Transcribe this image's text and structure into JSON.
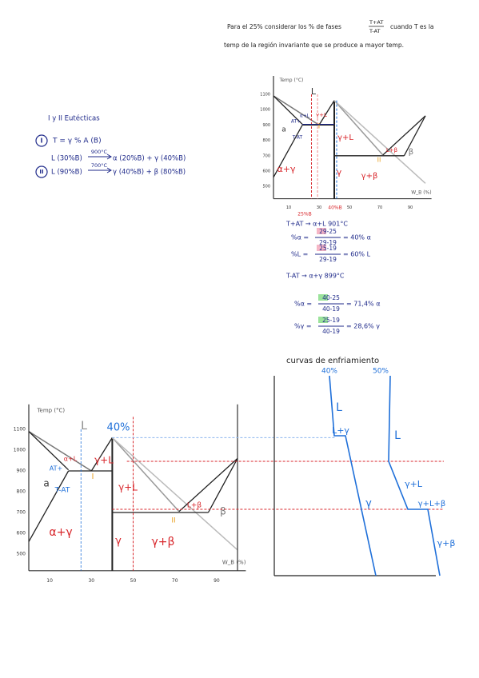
{
  "header": {
    "line1": "Para el 25% considerar los % de fases",
    "fraction_top": "T+AT",
    "fraction_bottom": "T-AT",
    "line1_end": "cuando T es la",
    "line2": "temp de la región invariante que se produce a mayor temp."
  },
  "reactions": {
    "title": "I y II Eutécticas",
    "items": [
      {
        "marker": "I",
        "text": "T = γ % A (B)"
      },
      {
        "reactant": "L (30%B)",
        "temperature": "900°C",
        "products": "α (20%B) + γ (40%B)"
      },
      {
        "marker": "II",
        "reactant": "L (90%B)",
        "temperature": "700°C",
        "products": "γ (40%B) + β (80%B)"
      }
    ]
  },
  "diagram_top": {
    "axis_title": "Temp (°C)",
    "yticks": [
      "1100",
      "1000",
      "900",
      "800",
      "700",
      "600",
      "500"
    ],
    "xticks": [
      "10",
      "30",
      "50",
      "70",
      "90"
    ],
    "x_axis_title": "W_B (%)",
    "labels": [
      "L",
      "a",
      "α+γ",
      "γ",
      "γ+L",
      "γ+β",
      "L+β",
      "β",
      "AT+",
      "T-AT",
      "α+L",
      "γ+L",
      "25%B",
      "40%B",
      "I",
      "II"
    ]
  },
  "calculations": {
    "headers": [
      "T+AT → α+L 901°C",
      "T-AT → α+γ 899°C"
    ],
    "fractions": [
      {
        "label": "%α =",
        "numerator": "29-25",
        "denominator": "29-19",
        "result": "= 40% α"
      },
      {
        "label": "%L =",
        "numerator": "25-19",
        "denominator": "29-19",
        "result": "= 60% L"
      },
      {
        "label": "%α =",
        "numerator": "40-25",
        "denominator": "40-19",
        "result": "= 71,4% α"
      },
      {
        "label": "%γ =",
        "numerator": "25-19",
        "denominator": "40-19",
        "result": "= 28,6% γ"
      }
    ]
  },
  "diagram_bottom": {
    "axis_title": "Temp (°C)",
    "yticks": [
      "1100",
      "1000",
      "900",
      "800",
      "700",
      "600",
      "500"
    ],
    "xticks": [
      "10",
      "30",
      "50",
      "70",
      "90"
    ],
    "x_axis_title": "W_B (%)",
    "labels": [
      "L",
      "40%",
      "a",
      "α+γ",
      "γ",
      "γ+L",
      "γ+β",
      "L+β",
      "β",
      "α+L",
      "γ+L",
      "AT+",
      "T-AT",
      "I",
      "II"
    ]
  },
  "cooling": {
    "title": "curvas de enfriamiento",
    "curve_labels": [
      "40%",
      "50%"
    ],
    "labels": [
      "L",
      "L+γ",
      "γ",
      "L",
      "γ+L",
      "γ+L+β",
      "γ+β"
    ]
  }
}
